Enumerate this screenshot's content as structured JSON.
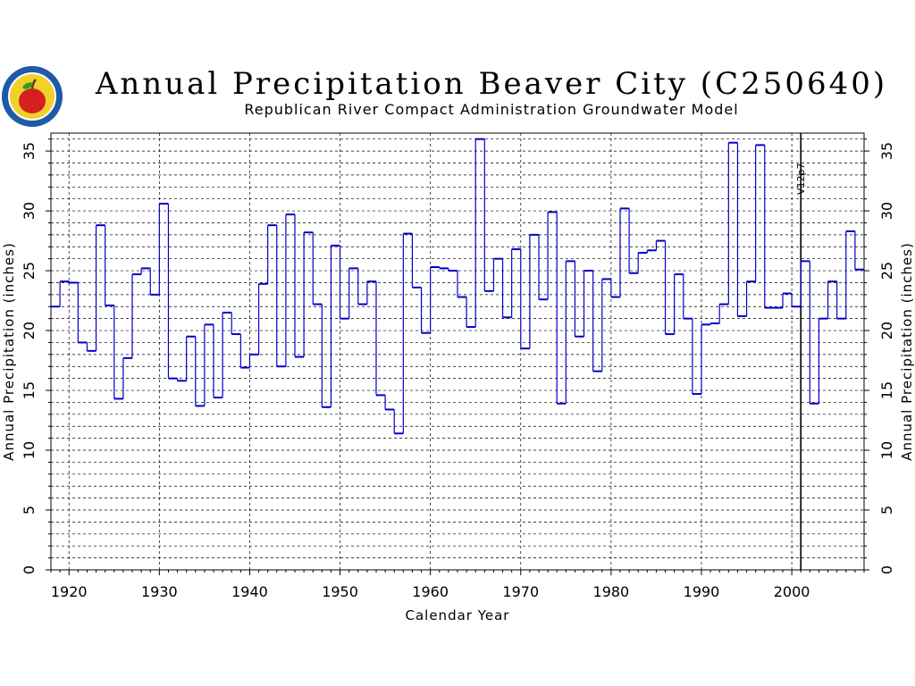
{
  "title": "Annual Precipitation Beaver City (C250640)",
  "subtitle": "Republican River Compact Administration Groundwater Model",
  "chart_data": {
    "type": "line",
    "step": true,
    "title": "Annual Precipitation Beaver City (C250640)",
    "subtitle": "Republican River Compact Administration Groundwater Model",
    "xlabel": "Calendar Year",
    "ylabel": "Annual Precipitation (inches)",
    "ylabel_right": "Annual Precipitation (inches)",
    "xlim": [
      1918,
      2008
    ],
    "ylim": [
      0,
      36.5
    ],
    "x_ticks": [
      1920,
      1930,
      1940,
      1950,
      1960,
      1970,
      1980,
      1990,
      2000
    ],
    "y_ticks": [
      0,
      5,
      10,
      15,
      20,
      25,
      30,
      35
    ],
    "grid": true,
    "vline": {
      "x": 2001,
      "label": "V12p7"
    },
    "colors": {
      "line": "#0000cc",
      "grid": "#000000",
      "axis": "#000000"
    },
    "series": [
      {
        "x": [
          1918,
          1919,
          1920,
          1921,
          1922,
          1923,
          1924,
          1925,
          1926,
          1927,
          1928,
          1929,
          1930,
          1931,
          1932,
          1933,
          1934,
          1935,
          1936,
          1937,
          1938,
          1939,
          1940,
          1941,
          1942,
          1943,
          1944,
          1945,
          1946,
          1947,
          1948,
          1949,
          1950,
          1951,
          1952,
          1953,
          1954,
          1955,
          1956,
          1957,
          1958,
          1959,
          1960,
          1961,
          1962,
          1963,
          1964,
          1965,
          1966,
          1967,
          1968,
          1969,
          1970,
          1971,
          1972,
          1973,
          1974,
          1975,
          1976,
          1977,
          1978,
          1979,
          1980,
          1981,
          1982,
          1983,
          1984,
          1985,
          1986,
          1987,
          1988,
          1989,
          1990,
          1991,
          1992,
          1993,
          1994,
          1995,
          1996,
          1997,
          1998,
          1999,
          2000,
          2001,
          2002,
          2003,
          2004,
          2005,
          2006,
          2007
        ],
        "values": [
          22.0,
          24.1,
          24.0,
          19.0,
          18.3,
          28.8,
          22.1,
          14.3,
          17.7,
          24.7,
          25.2,
          23.0,
          30.6,
          16.0,
          15.8,
          19.5,
          13.7,
          20.5,
          14.4,
          21.5,
          19.7,
          16.9,
          18.0,
          23.9,
          28.8,
          17.0,
          29.7,
          17.8,
          28.2,
          22.2,
          13.6,
          27.1,
          21.0,
          25.2,
          22.2,
          24.1,
          14.6,
          13.4,
          11.4,
          28.1,
          23.6,
          19.8,
          25.3,
          25.2,
          25.0,
          22.8,
          20.3,
          36.0,
          23.3,
          26.0,
          21.1,
          26.8,
          18.5,
          28.0,
          22.6,
          29.9,
          13.9,
          25.8,
          19.5,
          25.0,
          16.6,
          24.3,
          22.8,
          30.2,
          24.8,
          26.5,
          26.7,
          27.5,
          19.7,
          24.7,
          21.0,
          14.7,
          20.5,
          20.6,
          22.2,
          35.7,
          21.2,
          24.1,
          35.5,
          21.9,
          21.9,
          23.1,
          22.0,
          25.8,
          13.9,
          21.0,
          24.1,
          21.0,
          28.3,
          25.1
        ]
      }
    ]
  }
}
